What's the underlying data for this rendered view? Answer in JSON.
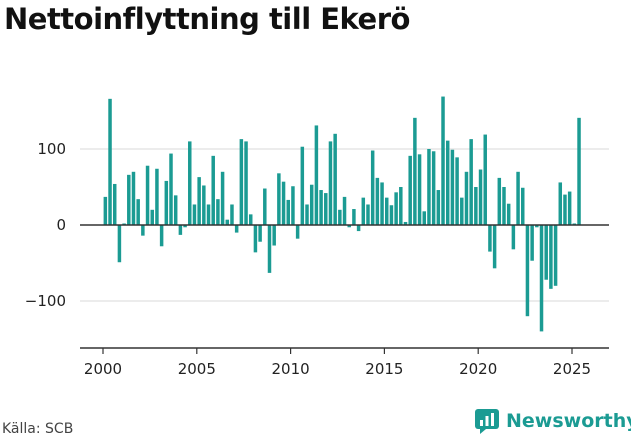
{
  "title": "Nettoinflyttning till Ekerö",
  "source": "Källa: SCB",
  "brand": "Newsworthy",
  "colors": {
    "bar": "#1b9b93",
    "grid": "#d9d9d9",
    "axis": "#333333",
    "brand": "#1b9b93"
  },
  "chart_data": {
    "type": "bar",
    "title": "Nettoinflyttning till Ekerö",
    "xlabel": "",
    "ylabel": "",
    "xlim": [
      1999.5,
      2026.5
    ],
    "ylim": [
      -160,
      180
    ],
    "yticks": [
      -100,
      0,
      100
    ],
    "ytick_labels": [
      "−100",
      "0",
      "100"
    ],
    "xticks": [
      2000,
      2005,
      2010,
      2015,
      2020,
      2025
    ],
    "grid": "horizontal",
    "legend": "none",
    "series": [
      {
        "x": [
          2000.125,
          2000.375,
          2000.625,
          2000.875,
          2001.125,
          2001.375,
          2001.625,
          2001.875,
          2002.125,
          2002.375,
          2002.625,
          2002.875,
          2003.125,
          2003.375,
          2003.625,
          2003.875,
          2004.125,
          2004.375,
          2004.625,
          2004.875,
          2005.125,
          2005.375,
          2005.625,
          2005.875,
          2006.125,
          2006.375,
          2006.625,
          2006.875,
          2007.125,
          2007.375,
          2007.625,
          2007.875,
          2008.125,
          2008.375,
          2008.625,
          2008.875,
          2009.125,
          2009.375,
          2009.625,
          2009.875,
          2010.125,
          2010.375,
          2010.625,
          2010.875,
          2011.125,
          2011.375,
          2011.625,
          2011.875,
          2012.125,
          2012.375,
          2012.625,
          2012.875,
          2013.125,
          2013.375,
          2013.625,
          2013.875,
          2014.125,
          2014.375,
          2014.625,
          2014.875,
          2015.125,
          2015.375,
          2015.625,
          2015.875,
          2016.125,
          2016.375,
          2016.625,
          2016.875,
          2017.125,
          2017.375,
          2017.625,
          2017.875,
          2018.125,
          2018.375,
          2018.625,
          2018.875,
          2019.125,
          2019.375,
          2019.625,
          2019.875,
          2020.125,
          2020.375,
          2020.625,
          2020.875,
          2021.125,
          2021.375,
          2021.625,
          2021.875,
          2022.125,
          2022.375,
          2022.625,
          2022.875,
          2023.125,
          2023.375,
          2023.625,
          2023.875,
          2024.125,
          2024.375,
          2024.625,
          2024.875,
          2025.125,
          2025.375
        ],
        "values": [
          37,
          166,
          54,
          -49,
          2,
          66,
          70,
          34,
          -14,
          78,
          20,
          74,
          -28,
          58,
          94,
          39,
          -13,
          -3,
          110,
          27,
          63,
          52,
          27,
          91,
          34,
          70,
          7,
          27,
          -10,
          113,
          110,
          14,
          -36,
          -22,
          48,
          -63,
          -27,
          68,
          57,
          33,
          51,
          -18,
          103,
          27,
          53,
          131,
          46,
          42,
          110,
          120,
          20,
          37,
          -3,
          21,
          -8,
          36,
          27,
          98,
          62,
          56,
          36,
          26,
          43,
          50,
          4,
          91,
          141,
          93,
          18,
          100,
          97,
          46,
          169,
          111,
          99,
          89,
          36,
          70,
          113,
          50,
          73,
          119,
          -35,
          -57,
          62,
          50,
          28,
          -32,
          70,
          49,
          -120,
          -47,
          -3,
          -140,
          -72,
          -84,
          -80,
          56,
          40,
          44,
          2,
          141
        ]
      }
    ]
  }
}
